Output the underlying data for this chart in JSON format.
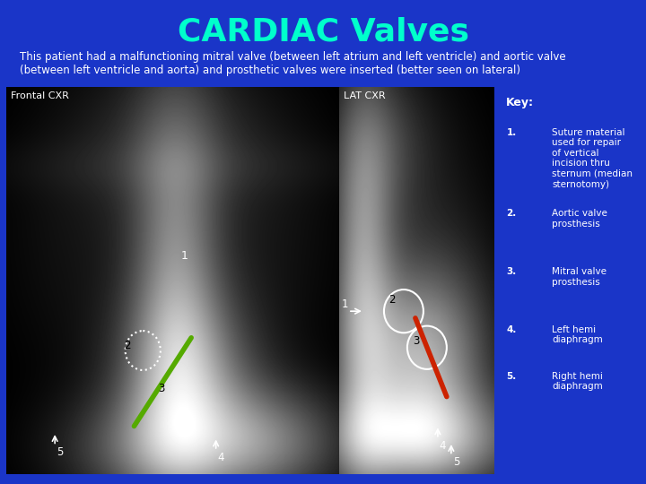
{
  "title": "CARDIAC Valves",
  "title_color": "#00FFCC",
  "title_fontsize": 26,
  "bg_color": "#1a35c8",
  "subtitle": "This patient had a malfunctioning mitral valve (between left atrium and left ventricle) and aortic valve\n(between left ventricle and aorta) and prosthetic valves were inserted (better seen on lateral)",
  "subtitle_color": "#ffffff",
  "subtitle_fontsize": 8.5,
  "frontal_label": "Frontal CXR",
  "lat_label": "LAT CXR",
  "label_color": "#ffffff",
  "label_fontsize": 8,
  "key_title": "Key:",
  "key_items": [
    "Suture material\nused for repair\nof vertical\nincision thru\nsternum (median\nsternotomy)",
    "Aortic valve\nprosthesis",
    "Mitral valve\nprosthesis",
    "Left hemi\ndiaphragm",
    "Right hemi\ndiaphragm"
  ],
  "key_color": "#ffffff",
  "key_fontsize": 7.5,
  "green_line_color": "#55aa00",
  "red_line_color": "#cc2200",
  "annotation_color": "#ffffff",
  "annotation_fontsize": 8
}
